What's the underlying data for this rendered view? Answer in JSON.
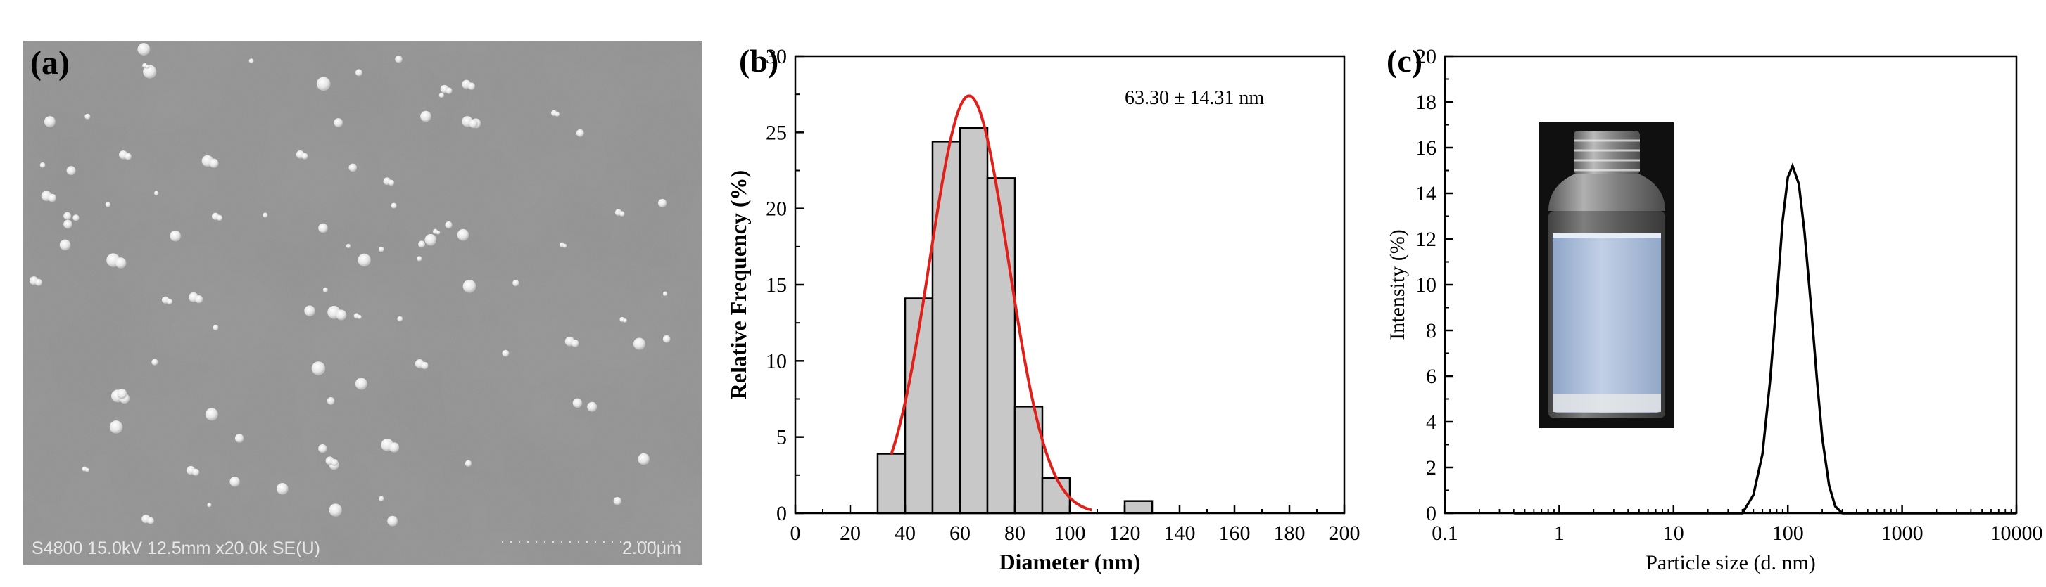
{
  "panels": {
    "a": {
      "label": "(a)",
      "sem_info": "S4800 15.0kV 12.5mm x20.0k SE(U)",
      "scale_label": "2.00μm"
    },
    "b": {
      "label": "(b)"
    },
    "c": {
      "label": "(c)"
    }
  },
  "chart_data": [
    {
      "type": "bar",
      "panel": "b",
      "xlabel": "Diameter (nm)",
      "ylabel": "Relative Frequency (%)",
      "annotation": "63.30 ± 14.31 nm",
      "xlim": [
        0,
        200
      ],
      "ylim": [
        0,
        30
      ],
      "xticks": [
        0,
        20,
        40,
        60,
        80,
        100,
        120,
        140,
        160,
        180,
        200
      ],
      "yticks": [
        0,
        5,
        10,
        15,
        20,
        25,
        30
      ],
      "bin_width": 10,
      "bins": [
        {
          "center": 35,
          "value": 3.9
        },
        {
          "center": 45,
          "value": 14.1
        },
        {
          "center": 55,
          "value": 24.4
        },
        {
          "center": 65,
          "value": 25.3
        },
        {
          "center": 75,
          "value": 22.0
        },
        {
          "center": 85,
          "value": 7.0
        },
        {
          "center": 95,
          "value": 2.3
        },
        {
          "center": 125,
          "value": 0.8
        }
      ],
      "fit": {
        "type": "gaussian",
        "mean": 63.3,
        "sd": 14.31,
        "peak": 27.4,
        "x_range": [
          35,
          108
        ],
        "color": "#e0201b"
      },
      "bar_fill": "#c8c8c8",
      "bar_stroke": "#000000",
      "grid": false
    },
    {
      "type": "line",
      "panel": "c",
      "xlabel": "Particle size (d. nm)",
      "ylabel": "Intensity (%)",
      "xscale": "log",
      "xlim": [
        0.1,
        10000
      ],
      "ylim": [
        0,
        20
      ],
      "xticks": [
        "0.1",
        "1",
        "10",
        "100",
        "1000",
        "10000"
      ],
      "yticks": [
        0,
        2,
        4,
        6,
        8,
        10,
        12,
        14,
        16,
        18,
        20
      ],
      "series": [
        {
          "x": [
            0.4,
            1,
            10,
            40,
            50,
            60,
            70,
            80,
            90,
            100,
            110,
            125,
            140,
            160,
            180,
            200,
            230,
            260,
            300,
            1000,
            10000
          ],
          "y": [
            0,
            0,
            0,
            0,
            0.8,
            2.6,
            5.8,
            9.4,
            12.8,
            14.7,
            15.2,
            14.4,
            12.3,
            9.0,
            5.8,
            3.3,
            1.2,
            0.3,
            0,
            0,
            0
          ]
        }
      ],
      "grid": false
    }
  ]
}
